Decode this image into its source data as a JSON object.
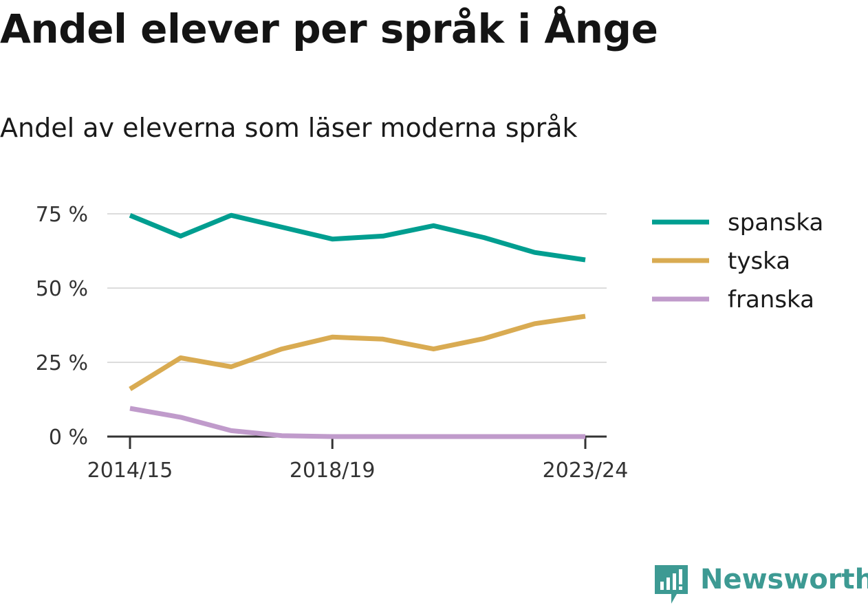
{
  "colors": {
    "spanska": "#009e90",
    "tyska": "#d9ab52",
    "franska": "#c09bcb",
    "grid": "#dcdcdc",
    "axis": "#333333",
    "brand": "#3d9a93"
  },
  "brand": {
    "name": "Newsworthy",
    "icon": "newsworthy-logo-icon"
  },
  "chart_data": {
    "type": "line",
    "title": "Andel elever per språk i Ånge",
    "subtitle": "Andel av eleverna som läser moderna språk",
    "xlabel": "",
    "ylabel": "",
    "x": [
      "2014/15",
      "2015/16",
      "2016/17",
      "2017/18",
      "2018/19",
      "2019/20",
      "2020/21",
      "2021/22",
      "2022/23",
      "2023/24"
    ],
    "x_tick_labels": [
      "2014/15",
      "2018/19",
      "2023/24"
    ],
    "y_ticks": [
      0,
      25,
      50,
      75
    ],
    "y_tick_labels": [
      "0 %",
      "25 %",
      "50 %",
      "75 %"
    ],
    "ylim": [
      0,
      75
    ],
    "grid": true,
    "legend": "right",
    "series": [
      {
        "name": "spanska",
        "values": [
          74.5,
          67.5,
          74.5,
          70.5,
          66.5,
          67.5,
          71,
          67,
          62,
          59.5
        ]
      },
      {
        "name": "tyska",
        "values": [
          16,
          26.5,
          23.5,
          29.5,
          33.5,
          32.8,
          29.5,
          33,
          38,
          40.5
        ]
      },
      {
        "name": "franska",
        "values": [
          9.5,
          6.5,
          2,
          0.3,
          0,
          0,
          0,
          0,
          0,
          0
        ]
      }
    ]
  }
}
